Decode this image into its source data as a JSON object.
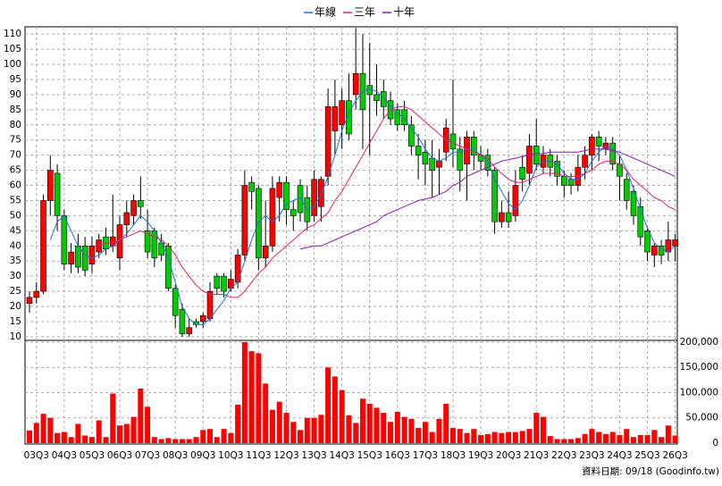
{
  "chart_data": {
    "type": "candlestick",
    "categories": [
      null,
      "03Q3",
      null,
      null,
      null,
      "04Q3",
      null,
      null,
      null,
      "05Q3",
      null,
      null,
      null,
      "06Q3",
      null,
      null,
      null,
      "07Q3",
      null,
      null,
      null,
      "08Q3",
      null,
      null,
      null,
      "09Q3",
      null,
      null,
      null,
      "10Q3",
      null,
      null,
      null,
      "11Q3",
      null,
      null,
      null,
      "12Q3",
      null,
      null,
      null,
      "13Q3",
      null,
      null,
      null,
      "14Q3",
      null,
      null,
      null,
      "15Q3",
      null,
      null,
      null,
      "16Q3",
      null,
      null,
      null,
      "17Q3",
      null,
      null,
      null,
      "18Q3",
      null,
      null,
      null,
      "19Q3",
      null,
      null,
      null,
      "20Q3",
      null,
      null,
      null,
      "21Q3",
      null,
      null,
      null,
      "22Q3",
      null,
      null,
      null,
      "23Q3",
      null,
      null,
      null,
      "24Q3",
      null,
      null,
      null,
      "25Q3",
      null,
      null,
      null,
      "26Q3"
    ],
    "open": [
      21,
      23,
      25,
      55,
      64,
      50,
      34,
      40,
      40,
      34,
      38,
      43,
      40,
      36,
      47,
      50,
      55,
      45,
      45,
      41,
      40,
      26,
      19,
      11,
      15,
      15,
      16,
      30,
      30,
      26,
      28,
      37,
      61,
      59,
      36,
      40,
      56,
      61,
      52,
      60,
      56,
      50,
      53,
      63,
      78,
      80,
      88,
      90,
      97,
      93,
      90,
      91,
      88,
      85,
      85,
      80,
      73,
      71,
      69,
      66,
      71,
      77,
      72,
      67,
      76,
      70,
      70,
      65,
      48,
      51,
      50,
      66,
      64,
      73,
      66,
      70,
      68,
      63,
      62,
      60,
      66,
      70,
      76,
      72,
      74,
      67,
      62,
      58,
      53,
      45,
      37,
      40,
      38,
      40
    ],
    "high": [
      25,
      28,
      57,
      70,
      67,
      52,
      41,
      44,
      43,
      43,
      44,
      46,
      57,
      50,
      55,
      57,
      63,
      52,
      46,
      44,
      41,
      27,
      21,
      16,
      16,
      18,
      28,
      31,
      31,
      32,
      39,
      65,
      63,
      60,
      55,
      63,
      63,
      63,
      55,
      62,
      60,
      65,
      63,
      92,
      95,
      92,
      97,
      112,
      110,
      107,
      100,
      95,
      91,
      87,
      88,
      83,
      77,
      75,
      75,
      72,
      82,
      95,
      76,
      78,
      78,
      73,
      72,
      66,
      55,
      58,
      65,
      70,
      77,
      82,
      73,
      72,
      70,
      65,
      64,
      70,
      73,
      77,
      78,
      76,
      76,
      70,
      64,
      60,
      56,
      46,
      41,
      42,
      48,
      44
    ],
    "low": [
      18,
      21,
      24,
      50,
      45,
      32,
      31,
      31,
      30,
      31,
      36,
      37,
      38,
      32,
      43,
      47,
      49,
      36,
      33,
      35,
      25,
      13,
      10,
      10,
      13,
      13,
      15,
      24,
      23,
      25,
      26,
      35,
      52,
      32,
      33,
      38,
      48,
      47,
      45,
      48,
      45,
      48,
      48,
      60,
      70,
      72,
      75,
      85,
      72,
      70,
      83,
      82,
      80,
      78,
      78,
      70,
      62,
      60,
      56,
      57,
      68,
      66,
      58,
      55,
      65,
      65,
      63,
      44,
      46,
      46,
      48,
      58,
      60,
      65,
      64,
      63,
      60,
      56,
      57,
      58,
      62,
      65,
      68,
      70,
      65,
      55,
      52,
      47,
      40,
      35,
      33,
      34,
      35,
      35
    ],
    "close": [
      23,
      25,
      55,
      65,
      50,
      34,
      38,
      33,
      32,
      40,
      42,
      39,
      43,
      47,
      51,
      55,
      53,
      38,
      36,
      37,
      26,
      17,
      11,
      13,
      14,
      17,
      25,
      26,
      25,
      29,
      37,
      60,
      58,
      36,
      40,
      59,
      61,
      52,
      50,
      51,
      48,
      62,
      62,
      86,
      86,
      88,
      77,
      97,
      85,
      90,
      88,
      86,
      82,
      80,
      80,
      73,
      70,
      67,
      65,
      68,
      79,
      72,
      65,
      76,
      70,
      68,
      65,
      48,
      51,
      48,
      60,
      62,
      73,
      67,
      70,
      66,
      63,
      60,
      60,
      66,
      70,
      76,
      73,
      74,
      67,
      63,
      55,
      50,
      43,
      38,
      40,
      37,
      42,
      42
    ],
    "series": [
      {
        "name": "年線",
        "color": "#1e6fd9",
        "values": [
          null,
          null,
          null,
          42,
          48,
          50,
          45,
          40,
          37,
          36,
          37,
          39,
          40,
          42,
          44,
          47,
          50,
          48,
          45,
          41,
          36,
          28,
          20,
          16,
          14,
          14,
          16,
          19,
          22,
          26,
          28,
          35,
          42,
          48,
          50,
          48,
          50,
          54,
          55,
          56,
          52,
          53,
          57,
          63,
          70,
          78,
          84,
          88,
          91,
          92,
          91,
          89,
          86,
          84,
          82,
          79,
          76,
          72,
          69,
          68,
          69,
          71,
          71,
          72,
          72,
          70,
          68,
          62,
          58,
          54,
          52,
          55,
          60,
          66,
          68,
          68,
          67,
          64,
          62,
          62,
          64,
          68,
          71,
          73,
          72,
          70,
          65,
          59,
          52,
          46,
          41,
          39,
          38,
          40
        ]
      },
      {
        "name": "三年",
        "color": "#e0206e",
        "values": [
          null,
          null,
          null,
          null,
          null,
          null,
          null,
          null,
          null,
          null,
          40,
          41,
          41,
          42,
          43,
          44,
          45,
          44,
          43,
          42,
          40,
          37,
          33,
          30,
          27,
          25,
          24,
          24,
          24,
          23,
          23,
          25,
          28,
          31,
          33,
          36,
          38,
          40,
          42,
          44,
          46,
          47,
          49,
          51,
          55,
          58,
          62,
          66,
          70,
          74,
          78,
          82,
          85,
          86,
          86,
          85,
          83,
          81,
          79,
          77,
          75,
          74,
          73,
          72,
          71,
          70,
          69,
          66,
          64,
          62,
          61,
          61,
          62,
          63,
          64,
          64,
          64,
          63,
          63,
          63,
          64,
          65,
          67,
          68,
          68,
          67,
          65,
          62,
          60,
          58,
          56,
          55,
          53,
          52
        ]
      },
      {
        "name": "十年",
        "color": "#8a1ab0",
        "values": [
          null,
          null,
          null,
          null,
          null,
          null,
          null,
          null,
          null,
          null,
          null,
          null,
          null,
          null,
          null,
          null,
          null,
          null,
          null,
          null,
          null,
          null,
          null,
          null,
          null,
          null,
          null,
          null,
          null,
          null,
          null,
          null,
          null,
          null,
          null,
          null,
          null,
          null,
          null,
          39,
          39.5,
          40,
          40,
          41,
          42,
          43,
          44,
          45,
          46,
          47,
          48,
          50,
          51,
          52,
          53,
          54,
          55,
          55.5,
          56,
          57,
          58,
          60,
          61,
          63,
          64,
          65,
          66,
          67,
          68,
          68.5,
          69,
          69.5,
          70,
          70.5,
          70.5,
          71,
          71,
          71,
          71,
          71,
          71.5,
          72,
          72,
          72,
          71.5,
          71,
          70,
          69,
          68,
          67,
          66,
          65,
          64,
          63
        ]
      }
    ],
    "up_color": "#ff0000",
    "down_color": "#00cc00",
    "ylim": [
      8.8,
      112.4
    ],
    "yticks": [
      10,
      15,
      20,
      25,
      30,
      35,
      40,
      45,
      50,
      55,
      60,
      65,
      70,
      75,
      80,
      85,
      90,
      95,
      100,
      105,
      110
    ],
    "volume": {
      "values": [
        25000,
        40000,
        58000,
        50000,
        20000,
        22000,
        12000,
        38000,
        15000,
        12000,
        45000,
        12000,
        98000,
        35000,
        38000,
        52000,
        108000,
        72000,
        12000,
        8000,
        10000,
        8000,
        8000,
        8000,
        12000,
        26000,
        28000,
        12000,
        28000,
        20000,
        76000,
        200000,
        182000,
        178000,
        118000,
        66000,
        82000,
        60000,
        42000,
        26000,
        50000,
        50000,
        56000,
        150000,
        132000,
        105000,
        55000,
        40000,
        88000,
        78000,
        70000,
        60000,
        42000,
        62000,
        52000,
        48000,
        30000,
        42000,
        22000,
        48000,
        78000,
        30000,
        28000,
        20000,
        28000,
        16000,
        18000,
        22000,
        20000,
        22000,
        22000,
        24000,
        28000,
        60000,
        52000,
        14000,
        8000,
        8000,
        8000,
        10000,
        18000,
        28000,
        22000,
        18000,
        22000,
        16000,
        28000,
        12000,
        16000,
        16000,
        26000,
        12000,
        35000,
        15000
      ],
      "color": "#ff0000",
      "ylim": [
        0,
        203500
      ],
      "yticks": [
        0,
        {
          "value": 50000,
          "label": "50,000"
        },
        {
          "value": 100000,
          "label": "100,000"
        },
        {
          "value": 150000,
          "label": "150,000"
        },
        {
          "value": 200000,
          "label": "200,000"
        }
      ]
    },
    "grid": true,
    "legend": "top",
    "footer": "資料日期: 09/18  (Goodinfo.tw)"
  }
}
